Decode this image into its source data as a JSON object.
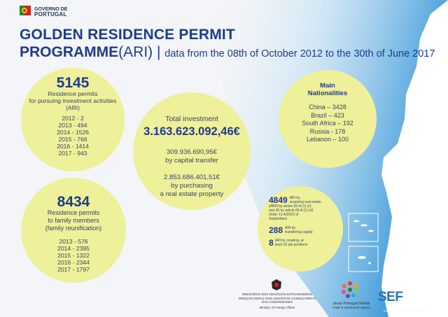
{
  "logo": {
    "line1": "GOVERNO DE",
    "line2": "PORTUGAL"
  },
  "title": {
    "line1": "GOLDEN RESIDENCE PERMIT",
    "line2_bold": "PROGRAMME",
    "line2_paren": "(ARI)",
    "line2_sep": " | ",
    "line2_sub": "data from the 08th of October 2012 to the 30th of June 2017"
  },
  "investment_permits": {
    "number": "5145",
    "caption": [
      "Residence permits",
      "for pursuing investment activities",
      "(ARI)"
    ],
    "years": [
      "2012 - 2",
      "2013 - 494",
      "2014 - 1526",
      "2015 - 766",
      "2016 - 1414",
      "2017 - 943"
    ]
  },
  "family_permits": {
    "number": "8434",
    "caption": [
      "Residence permits",
      "to family members",
      "(family reunification)"
    ],
    "years": [
      "2013 - 576",
      "2014 - 2395",
      "2015 - 1322",
      "2016 - 2344",
      "2017 - 1797"
    ]
  },
  "investment": {
    "label": "Total investment",
    "total": "3.163.623.092,46€",
    "capital_amount": "309.936.690,95€",
    "capital_label": "by capital transfer",
    "realestate_amount": "2.853.686.401,51€",
    "realestate_label": [
      "by purchasing",
      "a real estate property"
    ]
  },
  "nationalities": {
    "title": [
      "Main",
      "Nationalities"
    ],
    "items": [
      "China – 3428",
      "Brazil  –  423",
      "South Africa – 192",
      "Russia - 178",
      "Lebanon – 100"
    ]
  },
  "breakdown": {
    "realestate_number": "4849",
    "realestate_text": [
      "ARI by",
      "acquiring real estate",
      "(4804 by article 65-A (1) (c)",
      "and 45 by article 65-A (1) (d)",
      "Order 11-A/2015 of",
      "September)"
    ],
    "capital_number": "288",
    "capital_text": [
      "ARI by",
      "transfering capital"
    ],
    "jobs_number": "8",
    "jobs_text": [
      "ARI by creating, at",
      "least 10 job positions"
    ]
  },
  "footer": {
    "ministry": [
      "MINISTÉRIO DOS NEGÓCIOS ESTRANGEIROS",
      "DIREÇÃO-GERAL DOS ASSUNTOS CONSULARES E",
      "DAS COMUNIDADES",
      "Ministry of Foreign Affairs"
    ],
    "aicep": [
      "aicep Portugal Global",
      "Trade & Investment Agency"
    ],
    "sef": [
      "SEF",
      "Immigration and Borders Service"
    ]
  },
  "colors": {
    "title": "#1f3b8c",
    "circle": "#eef09a",
    "sea": "#4aa6e0"
  }
}
